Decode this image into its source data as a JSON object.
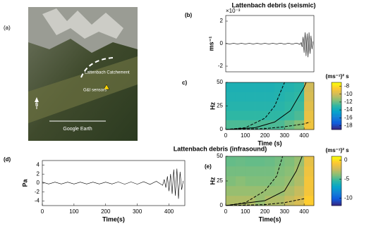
{
  "map": {
    "panel_label": "(a)",
    "catchment": "Lattenbach Catchement",
    "sensors": "G&I sensors",
    "north": "N",
    "source": "Google Earth"
  },
  "chart_data": [
    {
      "type": "line",
      "panel_label": "(b)",
      "title": "Lattenbach debris (seismic)",
      "y_label": "ms⁻¹",
      "y_multiplier": "×10⁻³",
      "color": "#000000",
      "x": [
        0,
        20,
        40,
        60,
        80,
        100,
        120,
        140,
        160,
        180,
        200,
        220,
        240,
        260,
        280,
        300,
        320,
        340,
        360,
        380,
        385,
        390,
        395,
        400,
        405,
        410,
        415,
        420,
        425,
        430,
        435,
        440,
        445
      ],
      "values": [
        0.03,
        -0.03,
        0.03,
        -0.03,
        0.03,
        -0.03,
        0.03,
        -0.03,
        0.03,
        -0.03,
        0.03,
        -0.03,
        0.03,
        -0.03,
        0.04,
        -0.04,
        0.04,
        -0.04,
        0.05,
        -0.06,
        0.1,
        -0.3,
        0.6,
        -0.8,
        1.0,
        -1.1,
        0.9,
        -1.2,
        1.0,
        -0.9,
        0.7,
        -0.5,
        0.2
      ],
      "xlim": [
        0,
        450
      ],
      "ylim": [
        -2.5,
        2.5
      ],
      "yticks": [
        -2,
        0,
        2
      ]
    },
    {
      "type": "heatmap",
      "panel_label": "c)",
      "x_label": "Time (s)",
      "y_label": "Hz",
      "colorbar_label": "(ms⁻¹)² s",
      "x_bins": [
        0,
        50,
        100,
        150,
        200,
        250,
        300,
        350,
        400,
        450
      ],
      "y_bins": [
        0,
        10,
        20,
        30,
        40,
        50
      ],
      "values": [
        [
          -12.5,
          -12.5,
          -12.5,
          -12.5,
          -12.5,
          -12.5,
          -12,
          -11.5,
          -9
        ],
        [
          -13,
          -13,
          -13,
          -13,
          -13,
          -13,
          -12.8,
          -12.5,
          -9.2
        ],
        [
          -13.3,
          -13.3,
          -13.3,
          -13.3,
          -13.3,
          -13.2,
          -13,
          -12.8,
          -9.5
        ],
        [
          -13.5,
          -13.5,
          -13.5,
          -13.5,
          -13.5,
          -13.4,
          -13.2,
          -13,
          -9.8
        ],
        [
          -13.6,
          -13.6,
          -13.6,
          -13.6,
          -13.6,
          -13.5,
          -13.4,
          -13.2,
          -10
        ]
      ],
      "curves": [
        {
          "style": "dashed",
          "x": [
            0,
            100,
            200,
            250,
            300
          ],
          "y": [
            0,
            2,
            12,
            25,
            50
          ]
        },
        {
          "style": "solid",
          "x": [
            0,
            150,
            250,
            330,
            400,
            410
          ],
          "y": [
            0,
            2,
            8,
            20,
            45,
            50
          ]
        },
        {
          "style": "dashed",
          "x": [
            0,
            200,
            300,
            400,
            430
          ],
          "y": [
            0,
            1,
            3,
            6,
            8
          ]
        }
      ],
      "xlim": [
        0,
        450
      ],
      "ylim": [
        0,
        50
      ],
      "xticks": [
        0,
        100,
        200,
        300,
        400
      ],
      "yticks": [
        0,
        25,
        50
      ],
      "clim": [
        -19,
        -7
      ],
      "cticks": [
        -8,
        -10,
        -12,
        -14,
        -16,
        -18
      ]
    },
    {
      "type": "line",
      "panel_label": "(d)",
      "title": "Lattenbach debris (infrasound)",
      "y_label": "Pa",
      "x_label": "Time(s)",
      "color": "#000000",
      "x": [
        0,
        20,
        40,
        60,
        80,
        100,
        120,
        140,
        160,
        180,
        200,
        220,
        240,
        260,
        280,
        300,
        320,
        340,
        360,
        380,
        385,
        390,
        395,
        400,
        405,
        410,
        415,
        420,
        425,
        430,
        435,
        440,
        445
      ],
      "values": [
        0.2,
        -0.2,
        0.2,
        -0.2,
        0.2,
        -0.2,
        0.2,
        -0.2,
        0.2,
        -0.2,
        0.2,
        -0.2,
        0.25,
        -0.25,
        0.25,
        -0.25,
        0.3,
        -0.3,
        0.4,
        -0.5,
        0.8,
        -1.0,
        1.5,
        -1.8,
        2.0,
        -2.4,
        3.0,
        -2.8,
        3.2,
        -3.5,
        2.5,
        -1.5,
        0.5
      ],
      "xlim": [
        0,
        450
      ],
      "ylim": [
        -5,
        5
      ],
      "xticks": [
        0,
        100,
        200,
        300,
        400
      ],
      "yticks": [
        -4,
        -2,
        0,
        2,
        4
      ]
    },
    {
      "type": "heatmap",
      "panel_label": "(e)",
      "x_label": "Time(s)",
      "y_label": "Hz",
      "colorbar_label": "(ms⁻¹)² s",
      "x_bins": [
        0,
        50,
        100,
        150,
        200,
        250,
        300,
        350,
        400,
        450
      ],
      "y_bins": [
        0,
        10,
        20,
        30,
        40,
        50
      ],
      "values": [
        [
          -3,
          -3,
          -3,
          -3.5,
          -3,
          -3,
          -2.5,
          -2,
          -0.5
        ],
        [
          -3.5,
          -3.5,
          -3.5,
          -3.5,
          -3.5,
          -3.5,
          -3,
          -2.5,
          -1
        ],
        [
          -4,
          -3.8,
          -4,
          -4,
          -4,
          -3.8,
          -3.5,
          -3,
          -1
        ],
        [
          -4.2,
          -4.2,
          -4.2,
          -4.2,
          -4.2,
          -4,
          -3.8,
          -3.2,
          -1.2
        ],
        [
          -4.5,
          -4.4,
          -4.5,
          -4.5,
          -4.4,
          -4.2,
          -4,
          -3.5,
          -1.5
        ]
      ],
      "curves": [
        {
          "style": "dashed",
          "x": [
            0,
            100,
            200,
            260,
            290
          ],
          "y": [
            0,
            3,
            15,
            30,
            50
          ]
        },
        {
          "style": "solid",
          "x": [
            0,
            200,
            300,
            360,
            390
          ],
          "y": [
            0,
            5,
            15,
            35,
            50
          ]
        },
        {
          "style": "dashed",
          "x": [
            0,
            200,
            300,
            400
          ],
          "y": [
            0,
            1,
            3,
            7
          ]
        }
      ],
      "xlim": [
        0,
        450
      ],
      "ylim": [
        0,
        50
      ],
      "xticks": [
        0,
        100,
        200,
        300,
        400
      ],
      "yticks": [
        0,
        25,
        50
      ],
      "clim": [
        -12,
        1
      ],
      "cticks": [
        0,
        -5,
        -10
      ]
    }
  ]
}
